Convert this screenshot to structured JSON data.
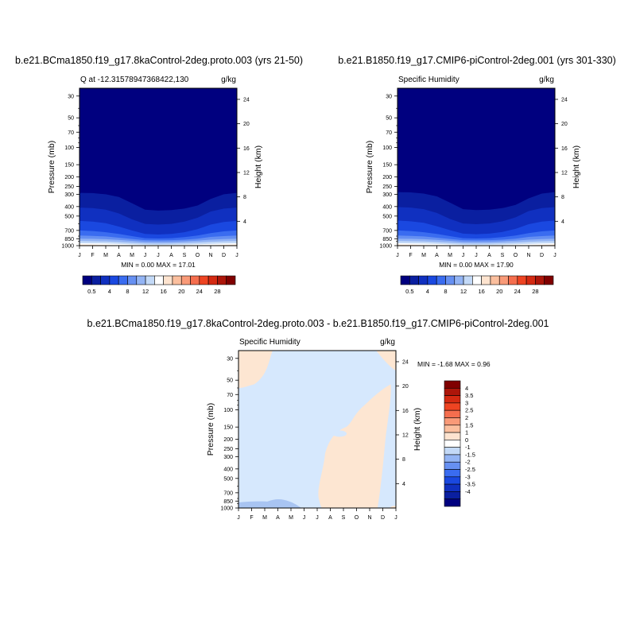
{
  "colorbar_colors": [
    "#00007f",
    "#0a1fa0",
    "#1030c0",
    "#1a48e0",
    "#3a6cf0",
    "#6690f2",
    "#93b4f4",
    "#c3d9f7",
    "#ffffff",
    "#fde3cf",
    "#fbbf9e",
    "#f99a78",
    "#f56e4e",
    "#ee4422",
    "#d42a12",
    "#ad160a",
    "#800000"
  ],
  "diff_colors": [
    "#00007f",
    "#0a1fa0",
    "#1030c0",
    "#1a48e0",
    "#3a6cf0",
    "#6690f2",
    "#93b4f4",
    "#c3d9f7",
    "#ffffff",
    "#fde3cf",
    "#fbbf9e",
    "#f99a78",
    "#f56e4e",
    "#ee4422",
    "#d42a12",
    "#ad160a",
    "#800000"
  ],
  "colors": {
    "land_pale_blue": "#d6e8fd",
    "pale_orange": "#fde6d2",
    "mid_blue": "#a8c4f2"
  },
  "panels": [
    {
      "id": "model-panel",
      "title": "b.e21.BCma1850.f19_g17.8kaControl-2deg.proto.003 (yrs 21-50)",
      "left_label": "Q at -12.31578947368422,130",
      "right_label": "g/kg",
      "min_max": "MIN =   0.00 MAX =  17.01"
    },
    {
      "id": "obs-panel",
      "title": "b.e21.B1850.f19_g17.CMIP6-piControl-2deg.001 (yrs 301-330)",
      "left_label": "Specific Humidity",
      "right_label": "g/kg",
      "min_max": "MIN =   0.00 MAX =  17.90"
    },
    {
      "id": "diff-panel",
      "title": "b.e21.BCma1850.f19_g17.8kaControl-2deg.proto.003 - b.e21.B1850.f19_g17.CMIP6-piControl-2deg.001",
      "left_label": "Specific Humidity",
      "right_label": "g/kg",
      "min_max": "MIN =  -1.68 MAX =   0.96"
    }
  ],
  "chart_data": [
    {
      "type": "heatmap",
      "title": "b.e21.BCma1850.f19_g17.8kaControl-2deg.proto.003 (yrs 21-50)",
      "subtitle_left": "Q at -12.31578947368422,130",
      "units": "g/kg",
      "ylabel": "Pressure (mb)",
      "ylabel_right": "Height (km)",
      "x_ticks": [
        "J",
        "F",
        "M",
        "A",
        "M",
        "J",
        "J",
        "A",
        "S",
        "O",
        "N",
        "D",
        "J"
      ],
      "y_ticks": [
        30,
        50,
        70,
        100,
        150,
        200,
        250,
        300,
        400,
        500,
        700,
        850,
        1000
      ],
      "y_right_ticks": [
        24,
        20,
        16,
        12,
        8,
        4
      ],
      "y_scale": "log-pressure",
      "ylim": [
        1000,
        25
      ],
      "colorbar_ticks": [
        "0.5",
        "4",
        "8",
        "12",
        "16",
        "20",
        "24",
        "28"
      ],
      "min": 0.0,
      "max": 17.01,
      "contour_top_pressure": [
        {
          "month": "J",
          "p": 290
        },
        {
          "month": "M",
          "p": 300
        },
        {
          "month": "A",
          "p": 340
        },
        {
          "month": "J",
          "p": 430
        },
        {
          "month": "J",
          "p": 440
        },
        {
          "month": "A",
          "p": 430
        },
        {
          "month": "S",
          "p": 400
        },
        {
          "month": "N",
          "p": 330
        },
        {
          "month": "J",
          "p": 290
        }
      ]
    },
    {
      "type": "heatmap",
      "title": "b.e21.B1850.f19_g17.CMIP6-piControl-2deg.001 (yrs 301-330)",
      "subtitle_left": "Specific Humidity",
      "units": "g/kg",
      "ylabel": "Pressure (mb)",
      "ylabel_right": "Height (km)",
      "x_ticks": [
        "J",
        "F",
        "M",
        "A",
        "M",
        "J",
        "J",
        "A",
        "S",
        "O",
        "N",
        "D",
        "J"
      ],
      "y_ticks": [
        30,
        50,
        70,
        100,
        150,
        200,
        250,
        300,
        400,
        500,
        700,
        850,
        1000
      ],
      "y_right_ticks": [
        24,
        20,
        16,
        12,
        8,
        4
      ],
      "y_scale": "log-pressure",
      "ylim": [
        1000,
        25
      ],
      "colorbar_ticks": [
        "0.5",
        "4",
        "8",
        "12",
        "16",
        "20",
        "24",
        "28"
      ],
      "min": 0.0,
      "max": 17.9
    },
    {
      "type": "heatmap",
      "title": "b.e21.BCma1850.f19_g17.8kaControl-2deg.proto.003 - b.e21.B1850.f19_g17.CMIP6-piControl-2deg.001",
      "subtitle_left": "Specific Humidity",
      "units": "g/kg",
      "ylabel": "Pressure (mb)",
      "ylabel_right": "Height (km)",
      "x_ticks": [
        "J",
        "F",
        "M",
        "A",
        "M",
        "J",
        "J",
        "A",
        "S",
        "O",
        "N",
        "D",
        "J"
      ],
      "y_ticks": [
        30,
        50,
        70,
        100,
        150,
        200,
        250,
        300,
        400,
        500,
        700,
        850,
        1000
      ],
      "y_right_ticks": [
        24,
        20,
        16,
        12,
        8,
        4
      ],
      "y_scale": "log-pressure",
      "ylim": [
        1000,
        25
      ],
      "colorbar_ticks": [
        "4",
        "3.5",
        "3",
        "2.5",
        "2",
        "1.5",
        "1",
        "0",
        "-1",
        "-1.5",
        "-2",
        "-2.5",
        "-3",
        "-3.5",
        "-4"
      ],
      "min": -1.68,
      "max": 0.96
    }
  ]
}
